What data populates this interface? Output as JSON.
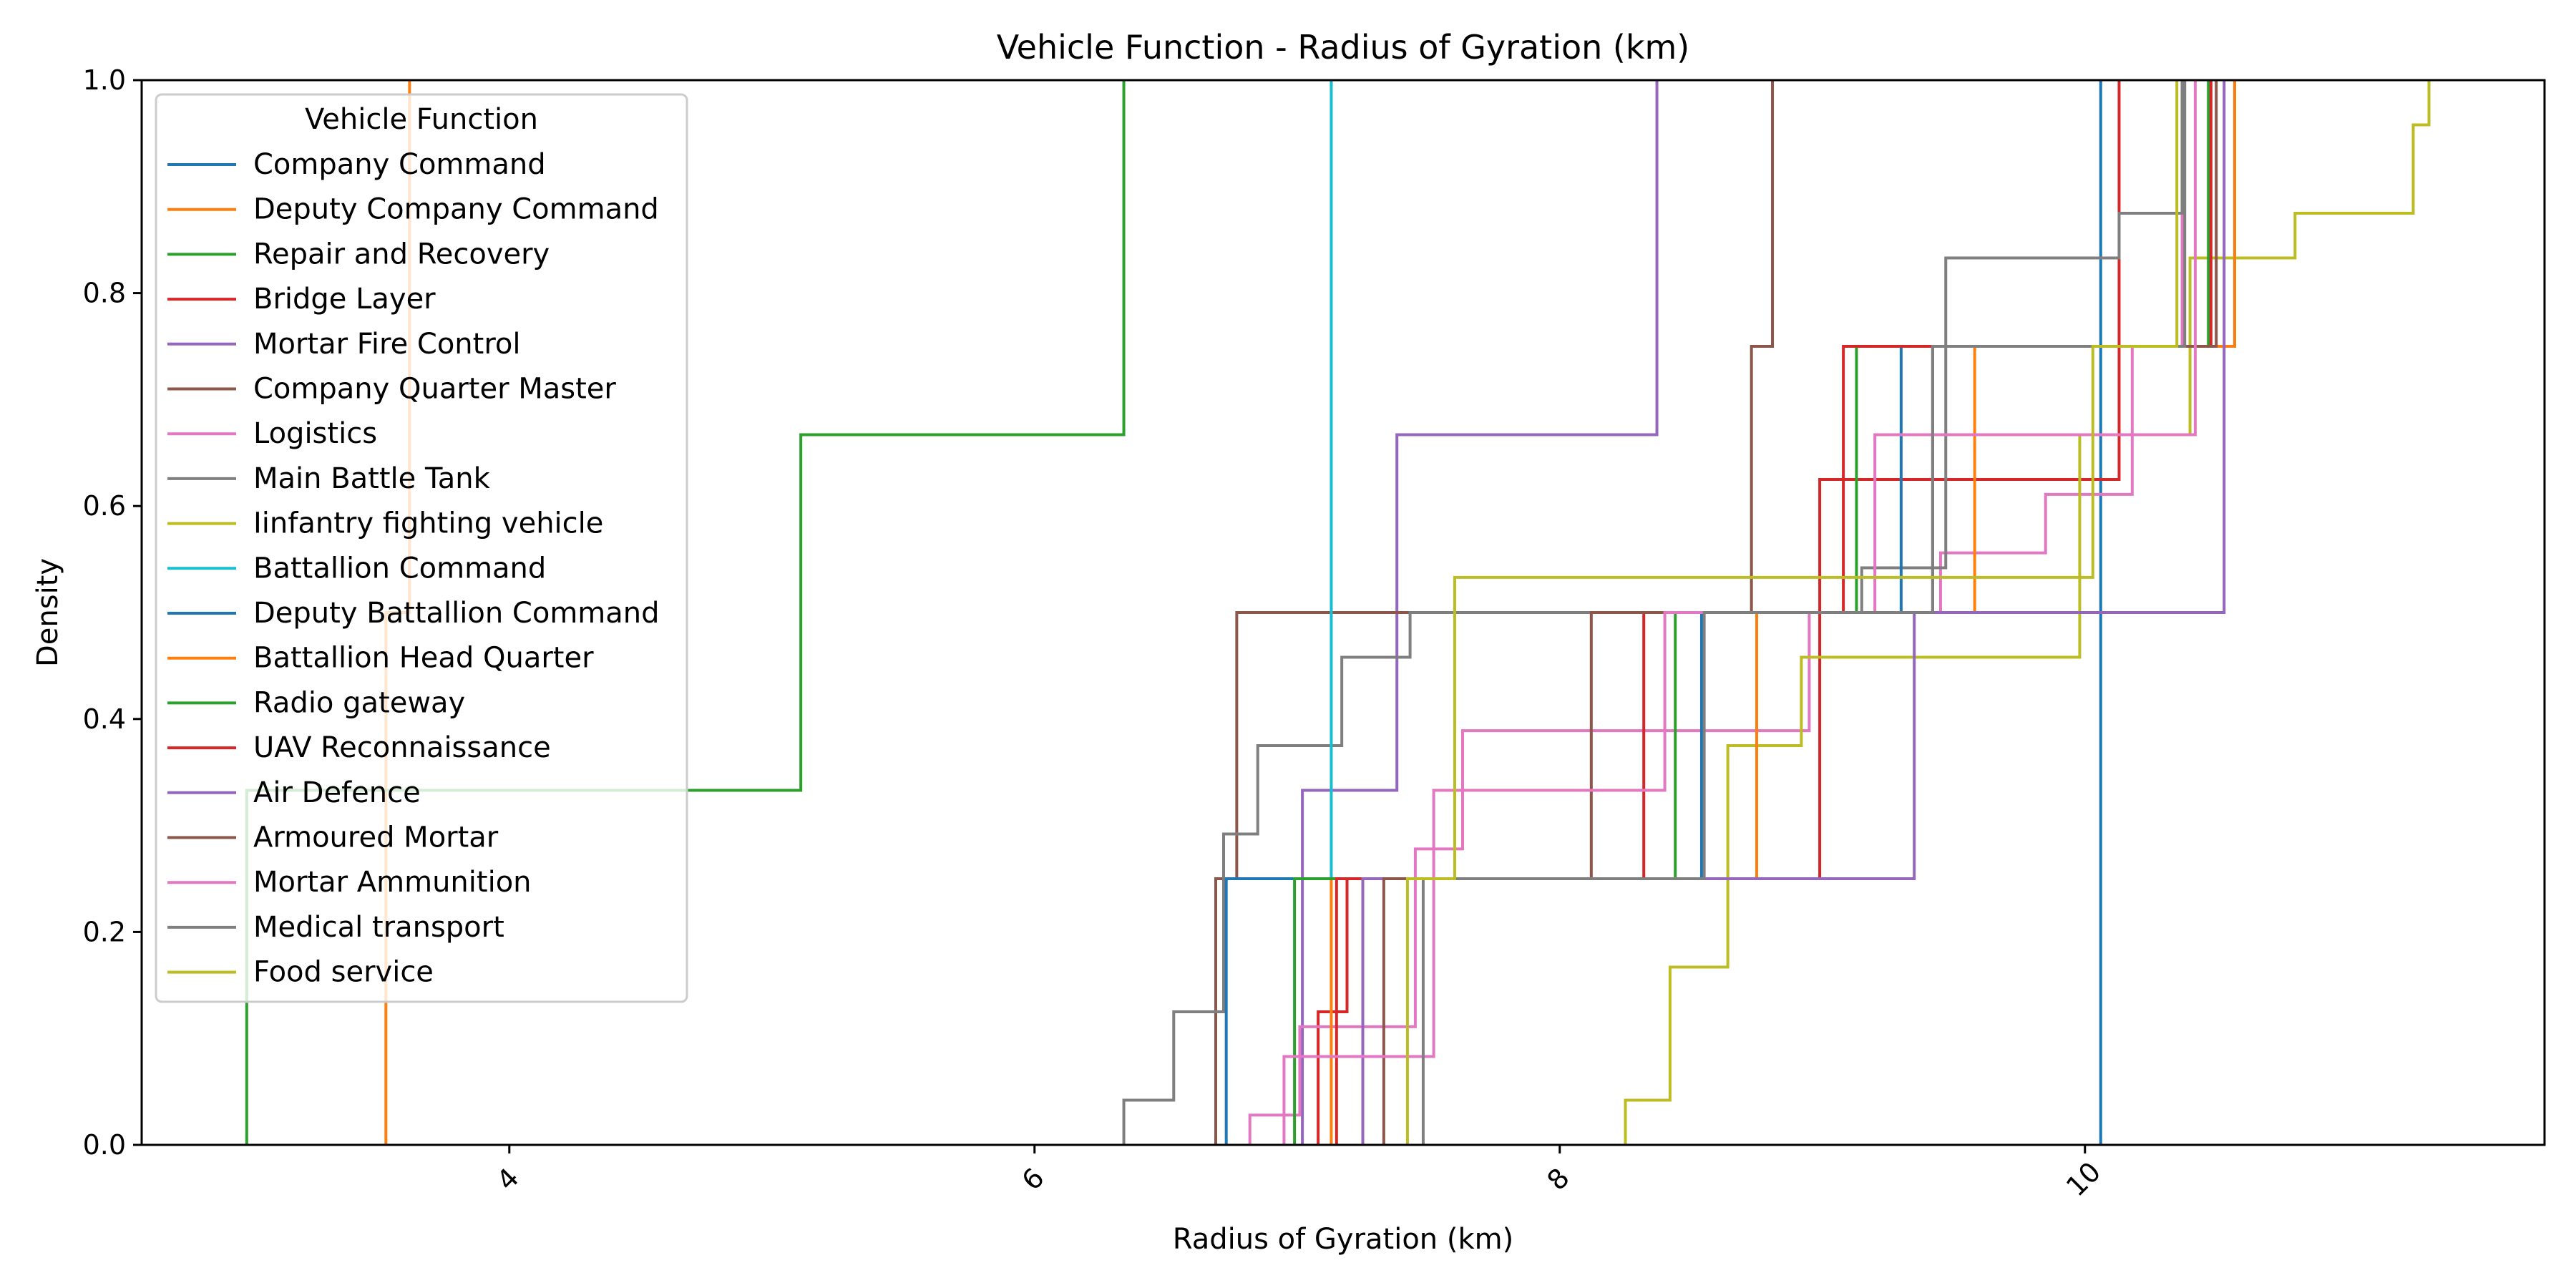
{
  "chart_data": {
    "type": "line",
    "step": true,
    "title": "Vehicle Function - Radius of Gyration (km)",
    "xlabel": "Radius of Gyration (km)",
    "ylabel": "Density",
    "xlim": [
      2.6,
      11.75
    ],
    "ylim": [
      0.0,
      1.0
    ],
    "x_ticks": [
      4,
      6,
      8,
      10
    ],
    "x_tick_labels": [
      "4",
      "6",
      "8",
      "10"
    ],
    "x_tick_rotation": 45,
    "y_ticks": [
      0.0,
      0.2,
      0.4,
      0.6,
      0.8,
      1.0
    ],
    "y_tick_labels": [
      "0.0",
      "0.2",
      "0.4",
      "0.6",
      "0.8",
      "1.0"
    ],
    "grid": false,
    "legend": {
      "title": "Vehicle Function",
      "placement": "upper-left"
    },
    "series": [
      {
        "name": "Company Command",
        "color": "#1f77b4",
        "x": [
          10.06
        ],
        "y": [
          1.0
        ]
      },
      {
        "name": "Deputy Company Command",
        "color": "#ff7f0e",
        "x": [
          3.53,
          3.62
        ],
        "y": [
          0.5,
          1.0
        ]
      },
      {
        "name": "Repair and Recovery",
        "color": "#2ca02c",
        "x": [
          3.0,
          5.11,
          6.34
        ],
        "y": [
          0.333,
          0.667,
          1.0
        ]
      },
      {
        "name": "Bridge Layer",
        "color": "#d62728",
        "x": [
          7.08,
          7.19,
          8.99,
          10.13
        ],
        "y": [
          0.125,
          0.25,
          0.625,
          1.0
        ]
      },
      {
        "name": "Mortar Fire Control",
        "color": "#9467bd",
        "x": [
          7.02,
          7.38,
          8.37
        ],
        "y": [
          0.333,
          0.667,
          1.0
        ]
      },
      {
        "name": "Company Quarter Master",
        "color": "#8c564b",
        "x": [
          6.69,
          6.77,
          8.73,
          8.81
        ],
        "y": [
          0.25,
          0.5,
          0.75,
          1.0
        ]
      },
      {
        "name": "Logistics",
        "color": "#e377c2",
        "x": [
          6.82,
          7.01,
          7.45,
          7.63,
          8.95,
          9.45,
          9.85,
          10.18,
          10.37
        ],
        "y": [
          0.028,
          0.111,
          0.278,
          0.389,
          0.5,
          0.556,
          0.611,
          0.75,
          1.0
        ]
      },
      {
        "name": "Main Battle Tank",
        "color": "#7f7f7f",
        "x": [
          6.34,
          6.53,
          6.72,
          6.85,
          7.17,
          7.43,
          9.15,
          9.47,
          10.13,
          10.37
        ],
        "y": [
          0.042,
          0.125,
          0.292,
          0.375,
          0.458,
          0.5,
          0.542,
          0.833,
          0.875,
          1.0
        ]
      },
      {
        "name": "Iinfantry fighting vehicle",
        "color": "#bcbd22",
        "x": [
          8.25,
          8.42,
          8.64,
          8.92,
          9.98,
          10.4,
          10.8,
          11.25,
          11.31
        ],
        "y": [
          0.042,
          0.167,
          0.375,
          0.458,
          0.667,
          0.833,
          0.875,
          0.958,
          1.0
        ]
      },
      {
        "name": "Battallion Command",
        "color": "#17becf",
        "x": [
          7.13
        ],
        "y": [
          1.0
        ]
      },
      {
        "name": "Deputy Battallion Command",
        "color": "#1f77b4",
        "x": [
          6.73,
          8.54,
          9.3,
          10.57
        ],
        "y": [
          0.25,
          0.5,
          0.75,
          1.0
        ]
      },
      {
        "name": "Battallion Head Quarter",
        "color": "#ff7f0e",
        "x": [
          7.13,
          8.75,
          9.58,
          10.57
        ],
        "y": [
          0.25,
          0.5,
          0.75,
          1.0
        ]
      },
      {
        "name": "Radio gateway",
        "color": "#2ca02c",
        "x": [
          6.99,
          8.44,
          9.13,
          10.47
        ],
        "y": [
          0.25,
          0.5,
          0.75,
          1.0
        ]
      },
      {
        "name": "UAV Reconnaissance",
        "color": "#d62728",
        "x": [
          7.15,
          8.32,
          9.08,
          10.48
        ],
        "y": [
          0.25,
          0.5,
          0.75,
          1.0
        ]
      },
      {
        "name": "Air Defence",
        "color": "#9467bd",
        "x": [
          7.25,
          9.35,
          10.53
        ],
        "y": [
          0.25,
          0.5,
          1.0
        ]
      },
      {
        "name": "Armoured Mortar",
        "color": "#8c564b",
        "x": [
          7.33,
          8.12,
          9.42,
          10.5
        ],
        "y": [
          0.25,
          0.5,
          0.75,
          1.0
        ]
      },
      {
        "name": "Mortar Ammunition",
        "color": "#e377c2",
        "x": [
          6.95,
          7.52,
          8.4,
          9.2,
          10.42
        ],
        "y": [
          0.083,
          0.333,
          0.5,
          0.667,
          1.0
        ]
      },
      {
        "name": "Medical transport",
        "color": "#7f7f7f",
        "x": [
          7.48,
          8.55,
          9.42,
          10.38
        ],
        "y": [
          0.25,
          0.5,
          0.75,
          1.0
        ]
      },
      {
        "name": "Food service",
        "color": "#bcbd22",
        "x": [
          7.42,
          7.6,
          10.03,
          10.35
        ],
        "y": [
          0.25,
          0.533,
          0.75,
          1.0
        ]
      }
    ]
  }
}
